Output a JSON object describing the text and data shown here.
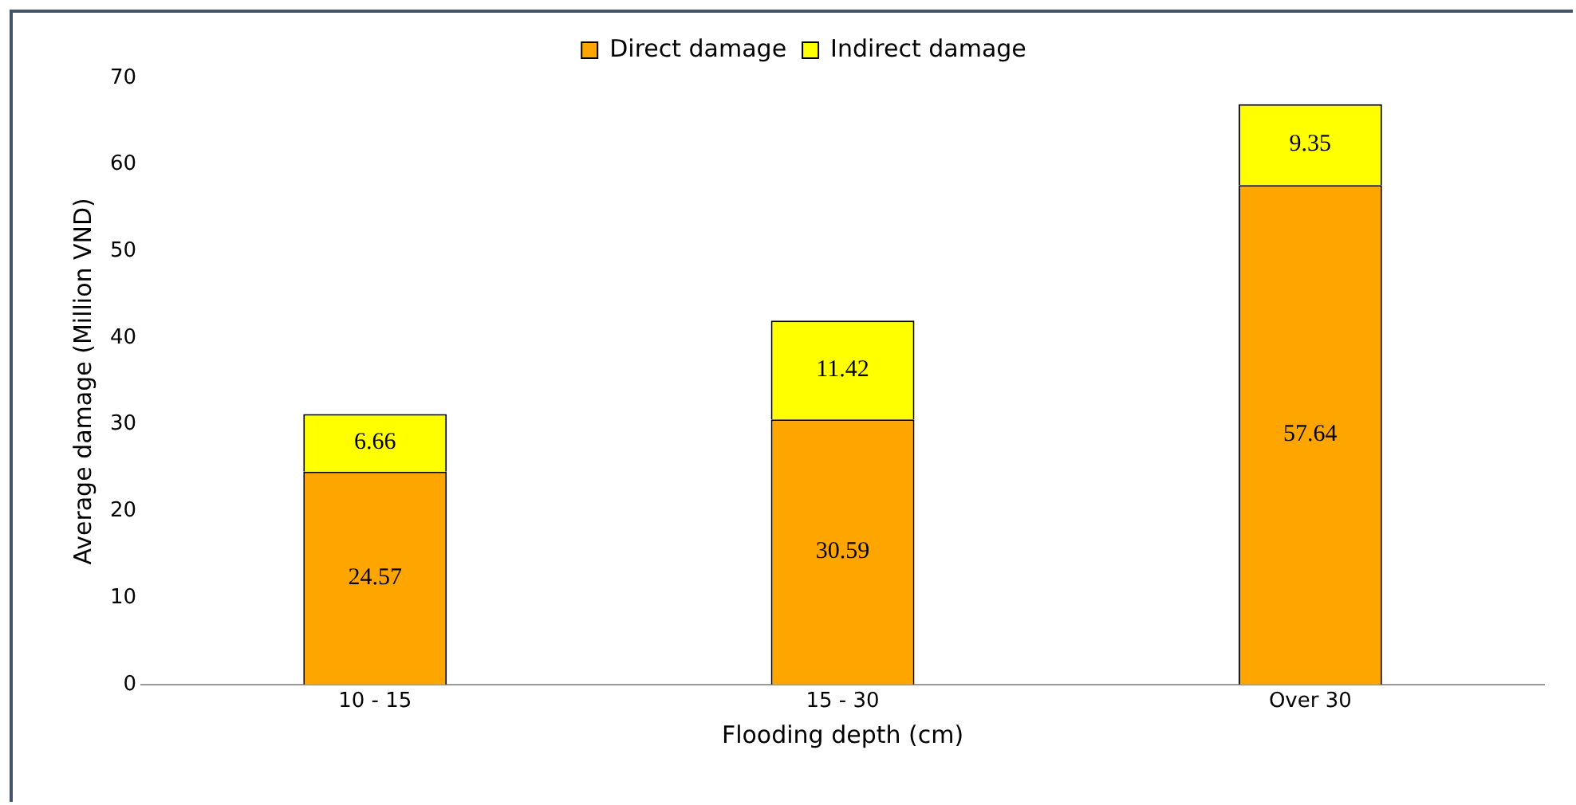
{
  "chart_data": {
    "type": "bar",
    "stacked": true,
    "xlabel": "Flooding depth (cm)",
    "ylabel": "Average damage (Million VND)",
    "categories": [
      "10 - 15",
      "15 - 30",
      "Over 30"
    ],
    "series": [
      {
        "name": "Direct damage",
        "color": "#ffa500",
        "values": [
          24.57,
          30.59,
          57.64
        ]
      },
      {
        "name": "Indirect damage",
        "color": "#ffff00",
        "values": [
          6.66,
          11.42,
          9.35
        ]
      }
    ],
    "ylim": [
      0,
      70
    ],
    "yticks": [
      0,
      10,
      20,
      30,
      40,
      50,
      60,
      70
    ],
    "grid": false,
    "legend": "top",
    "data_labels": true
  }
}
